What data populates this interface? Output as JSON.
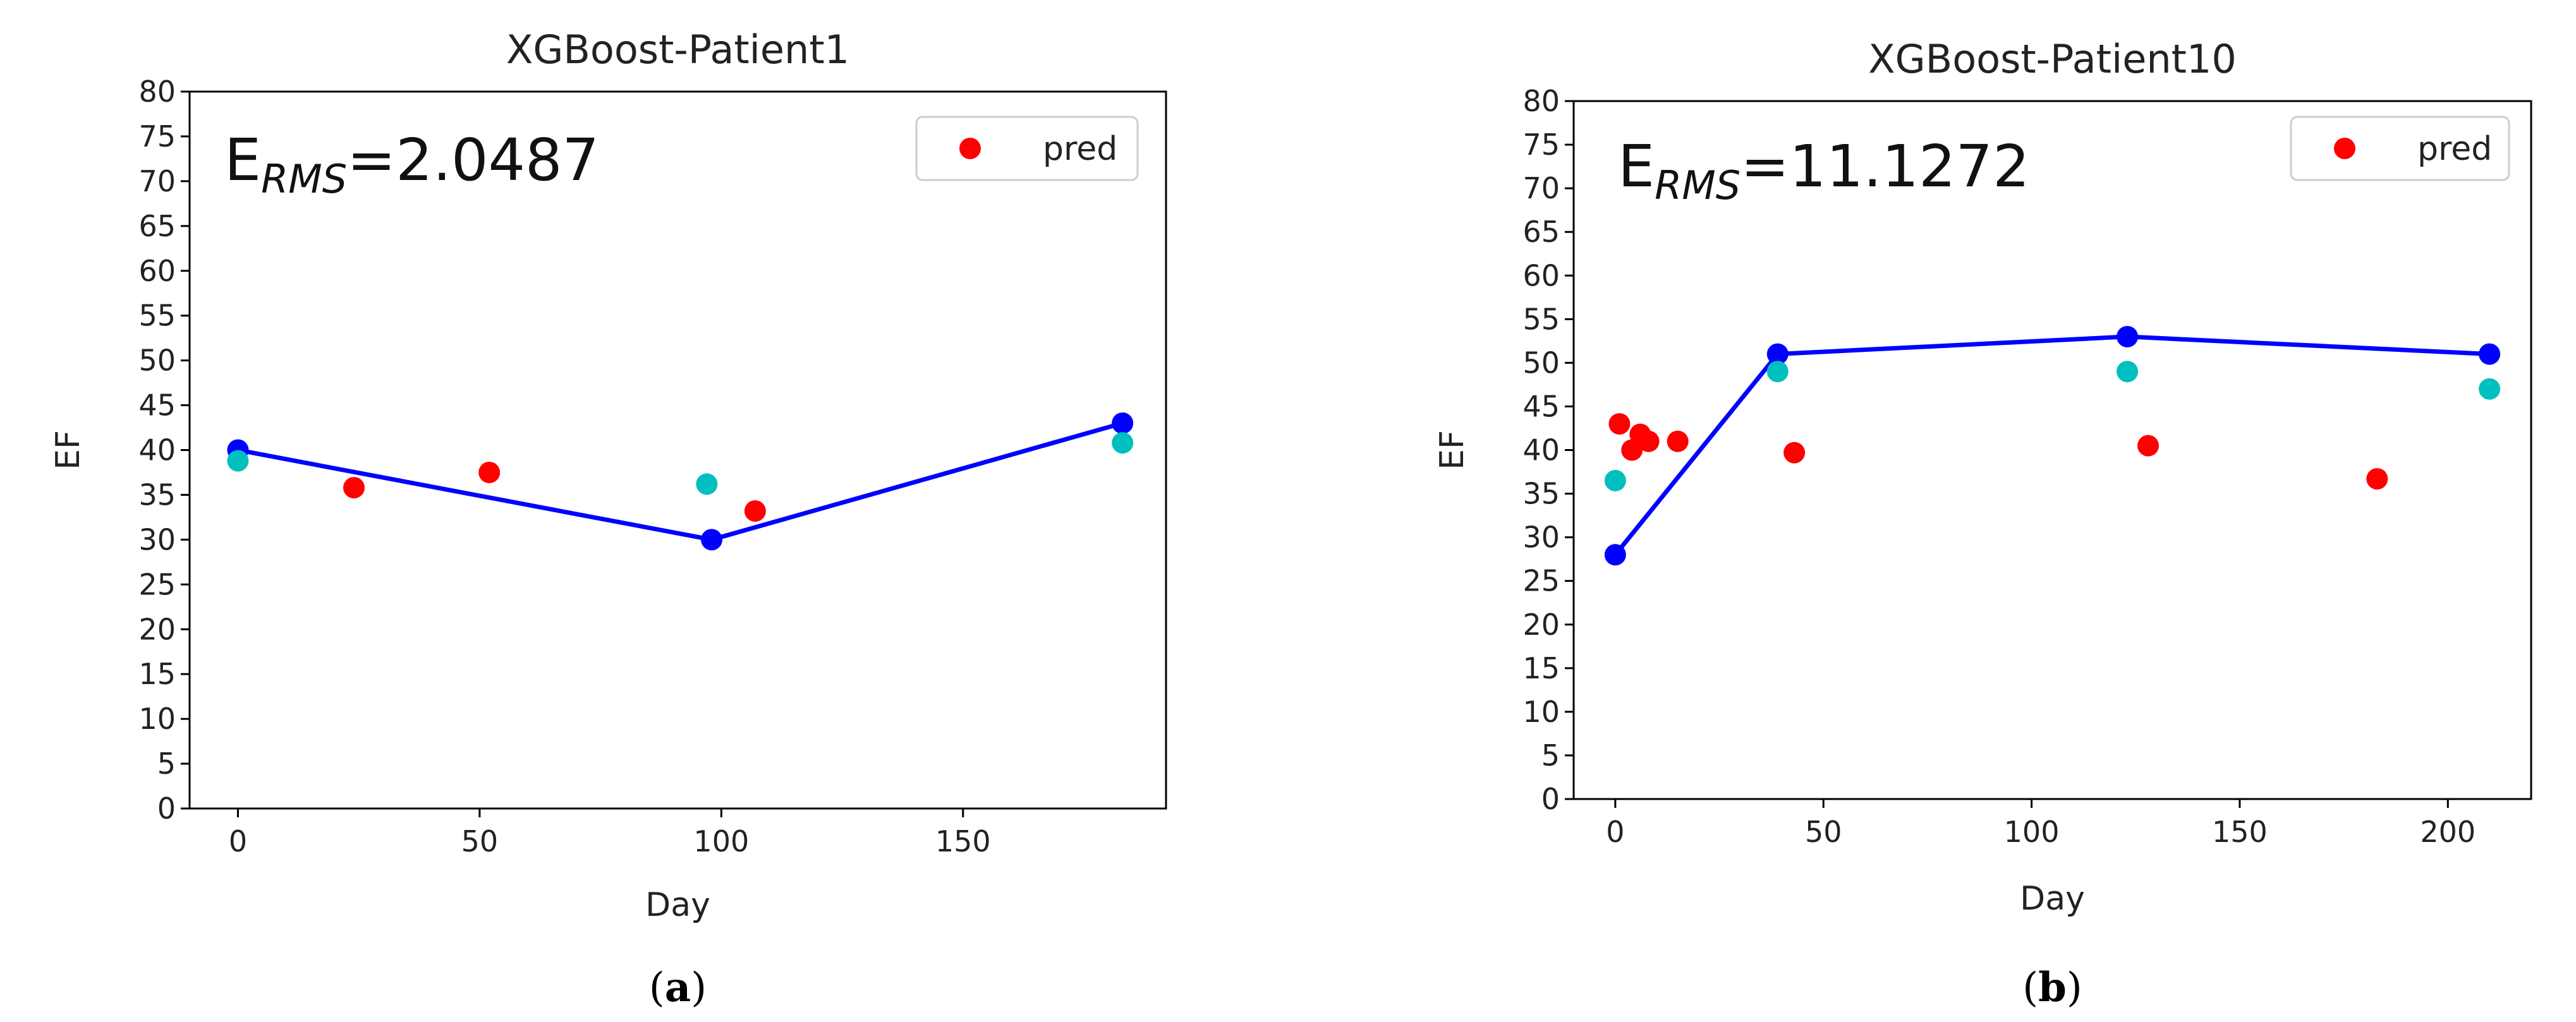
{
  "chart_data": [
    {
      "type": "scatter",
      "title": "XGBoost-Patient1",
      "xlabel": "Day",
      "ylabel": "EF",
      "xlim": [
        -10,
        192
      ],
      "ylim": [
        0,
        80
      ],
      "xticks": [
        0,
        50,
        100,
        150
      ],
      "yticks": [
        0,
        5,
        10,
        15,
        20,
        25,
        30,
        35,
        40,
        45,
        50,
        55,
        60,
        65,
        70,
        75,
        80
      ],
      "annotation": {
        "prefix": "E",
        "subscript": "RMS",
        "value": "=2.0487"
      },
      "legend": {
        "placement": "top-right",
        "entries": [
          {
            "label": "pred",
            "color": "#ff0000"
          }
        ]
      },
      "caption": {
        "open": "(",
        "letter": "a",
        "close": ")"
      },
      "series": [
        {
          "role": "line",
          "color": "#0000ff",
          "x": [
            0,
            98,
            183
          ],
          "y": [
            40,
            30,
            43
          ]
        },
        {
          "role": "points",
          "color": "#00bfbf",
          "x": [
            0,
            97,
            183
          ],
          "y": [
            38.8,
            36.2,
            40.8
          ]
        },
        {
          "name": "pred",
          "role": "points",
          "color": "#ff0000",
          "x": [
            24,
            52,
            107
          ],
          "y": [
            35.8,
            37.5,
            33.2
          ]
        }
      ]
    },
    {
      "type": "scatter",
      "title": "XGBoost-Patient10",
      "xlabel": "Day",
      "ylabel": "EF",
      "xlim": [
        -10,
        220
      ],
      "ylim": [
        0,
        80
      ],
      "xticks": [
        0,
        50,
        100,
        150,
        200
      ],
      "yticks": [
        0,
        5,
        10,
        15,
        20,
        25,
        30,
        35,
        40,
        45,
        50,
        55,
        60,
        65,
        70,
        75,
        80
      ],
      "annotation": {
        "prefix": "E",
        "subscript": "RMS",
        "value": "=11.1272"
      },
      "legend": {
        "placement": "top-right",
        "entries": [
          {
            "label": "pred",
            "color": "#ff0000"
          }
        ]
      },
      "caption": {
        "open": "(",
        "letter": "b",
        "close": ")"
      },
      "series": [
        {
          "role": "line",
          "color": "#0000ff",
          "x": [
            0,
            39,
            123,
            210
          ],
          "y": [
            28,
            51,
            53,
            51
          ]
        },
        {
          "role": "points",
          "color": "#00bfbf",
          "x": [
            0,
            39,
            123,
            210
          ],
          "y": [
            36.5,
            49,
            49,
            47
          ]
        },
        {
          "name": "pred",
          "role": "points",
          "color": "#ff0000",
          "x": [
            1,
            4,
            6,
            8,
            15,
            43,
            128,
            183
          ],
          "y": [
            43,
            40,
            41.8,
            41,
            41,
            39.7,
            40.5,
            36.7
          ]
        }
      ]
    }
  ]
}
